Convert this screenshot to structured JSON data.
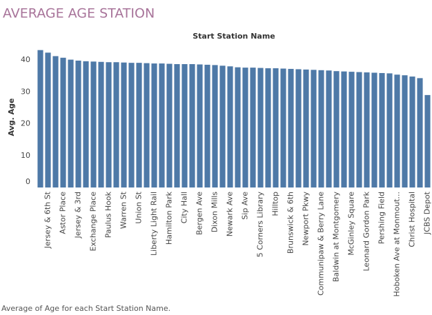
{
  "chart_data": {
    "type": "bar",
    "title": "AVERAGE AGE STATION",
    "x_label": "Start Station Name",
    "y_label": "Avg. Age",
    "caption": "Average of Age for each Start Station Name.",
    "color": "#4e79a7",
    "grid": false,
    "ylim": [
      0,
      44
    ],
    "yticks": [
      0,
      10,
      20,
      30,
      40
    ],
    "categories": [
      null,
      "Jersey & 6th St",
      null,
      "Astor Place",
      null,
      "Jersey & 3rd",
      null,
      "Exchange Place",
      null,
      "Paulus Hook",
      null,
      "Warren St",
      null,
      "Union St",
      null,
      "Liberty Light Rail",
      null,
      "Hamilton Park",
      null,
      "City Hall",
      null,
      "Bergen Ave",
      null,
      "Dixon Mills",
      null,
      "Newark Ave",
      null,
      "Sip Ave",
      null,
      "5 Corners Library",
      null,
      "Hilltop",
      null,
      "Brunswick & 6th",
      null,
      "Newport Pkwy",
      null,
      "Communipaw & Berry Lane",
      null,
      "Baldwin at Montgomery",
      null,
      "McGinley Square",
      null,
      "Leonard Gordon Park",
      null,
      "Pershing Field",
      null,
      "Hoboken Ave at Monmout...",
      null,
      "Christ Hospital",
      null,
      "JCBS Depot"
    ],
    "values": [
      43.1,
      42.3,
      41.2,
      40.7,
      40.1,
      39.8,
      39.6,
      39.5,
      39.4,
      39.3,
      39.3,
      39.2,
      39.1,
      39.1,
      39.0,
      38.9,
      38.9,
      38.8,
      38.7,
      38.7,
      38.7,
      38.6,
      38.5,
      38.4,
      38.2,
      38.0,
      37.7,
      37.6,
      37.6,
      37.5,
      37.4,
      37.4,
      37.3,
      37.2,
      37.1,
      37.0,
      36.9,
      36.8,
      36.7,
      36.5,
      36.4,
      36.3,
      36.2,
      36.1,
      36.0,
      35.9,
      35.8,
      35.4,
      35.2,
      34.8,
      34.3,
      29.0
    ]
  }
}
